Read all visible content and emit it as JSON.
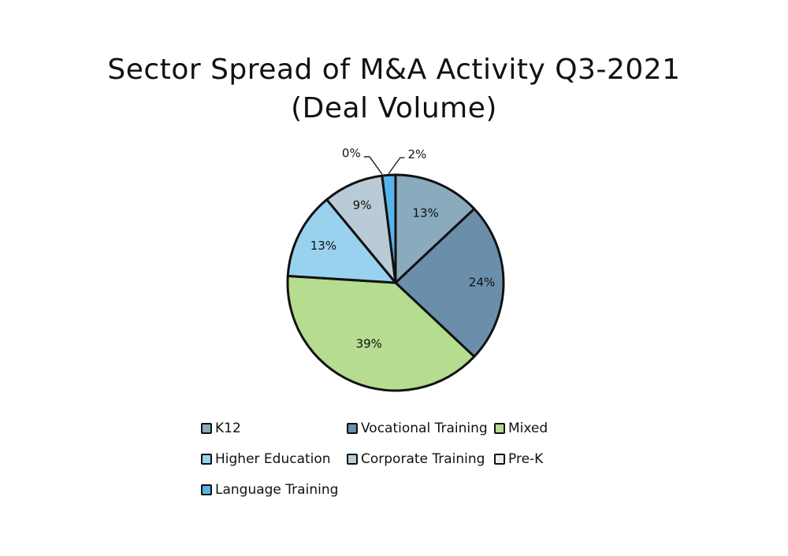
{
  "chart_data": {
    "type": "pie",
    "title": "Sector Spread of M&A Activity Q3-2021",
    "subtitle": "(Deal Volume)",
    "slices": [
      {
        "label": "K12",
        "value": 13,
        "display": "13%",
        "color": "#8aabbd"
      },
      {
        "label": "Vocational Training",
        "value": 24,
        "display": "24%",
        "color": "#6b8fab"
      },
      {
        "label": "Mixed",
        "value": 39,
        "display": "39%",
        "color": "#b5dc8f"
      },
      {
        "label": "Higher Education",
        "value": 13,
        "display": "13%",
        "color": "#99d2ee"
      },
      {
        "label": "Corporate Training",
        "value": 9,
        "display": "9%",
        "color": "#b9cbd6"
      },
      {
        "label": "Pre-K",
        "value": 0,
        "display": "0%",
        "color": "#e8eef1"
      },
      {
        "label": "Language Training",
        "value": 2,
        "display": "2%",
        "color": "#56b4e9"
      }
    ],
    "legend_position": "bottom"
  }
}
